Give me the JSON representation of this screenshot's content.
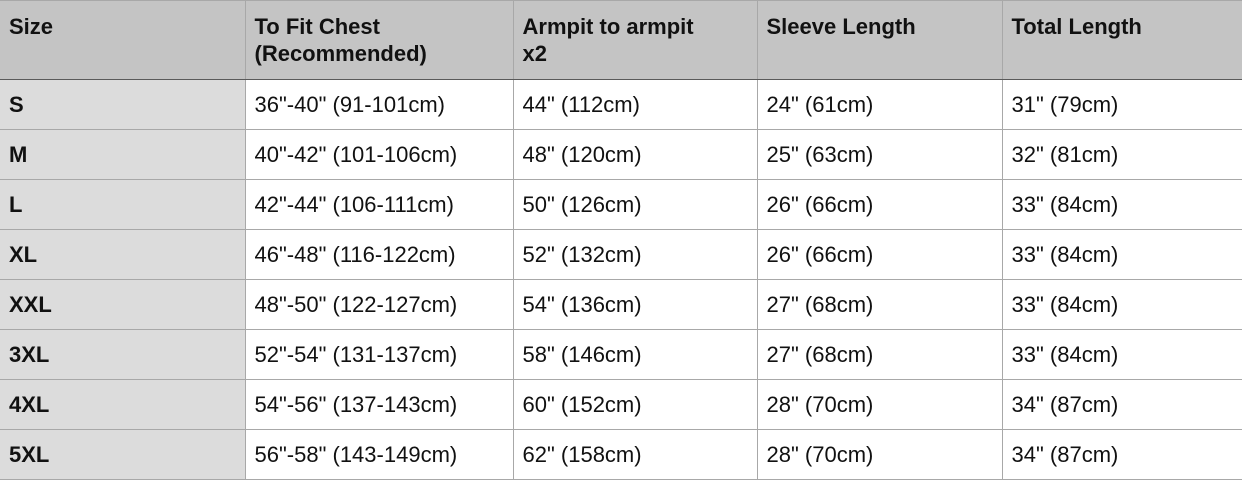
{
  "headers": [
    "Size",
    "To Fit Chest (Recommended)",
    "Armpit to armpit x2",
    "Sleeve Length",
    "Total Length"
  ],
  "header_lines": [
    [
      "Size"
    ],
    [
      "To Fit Chest",
      "(Recommended)"
    ],
    [
      "Armpit to armpit",
      "x2"
    ],
    [
      "Sleeve Length"
    ],
    [
      "Total Length"
    ]
  ],
  "rows": [
    [
      "S",
      "36\"-40\" (91-101cm)",
      "44\" (112cm)",
      "24\" (61cm)",
      "31\" (79cm)"
    ],
    [
      "M",
      "40\"-42\" (101-106cm)",
      "48\" (120cm)",
      "25\" (63cm)",
      "32\" (81cm)"
    ],
    [
      "L",
      "42\"-44\" (106-111cm)",
      "50\" (126cm)",
      "26\" (66cm)",
      "33\" (84cm)"
    ],
    [
      "XL",
      "46\"-48\" (116-122cm)",
      "52\" (132cm)",
      "26\" (66cm)",
      "33\" (84cm)"
    ],
    [
      "XXL",
      "48\"-50\" (122-127cm)",
      "54\" (136cm)",
      "27\" (68cm)",
      "33\" (84cm)"
    ],
    [
      "3XL",
      "52\"-54\" (131-137cm)",
      "58\" (146cm)",
      "27\" (68cm)",
      "33\" (84cm)"
    ],
    [
      "4XL",
      "54\"-56\" (137-143cm)",
      "60\" (152cm)",
      "28\" (70cm)",
      "34\" (87cm)"
    ],
    [
      "5XL",
      "56\"-58\" (143-149cm)",
      "62\" (158cm)",
      "28\" (70cm)",
      "34\" (87cm)"
    ]
  ],
  "colors": {
    "header_bg": "#c4c4c4",
    "size_col_bg": "#dcdcdc",
    "border": "#a8a8a8"
  }
}
